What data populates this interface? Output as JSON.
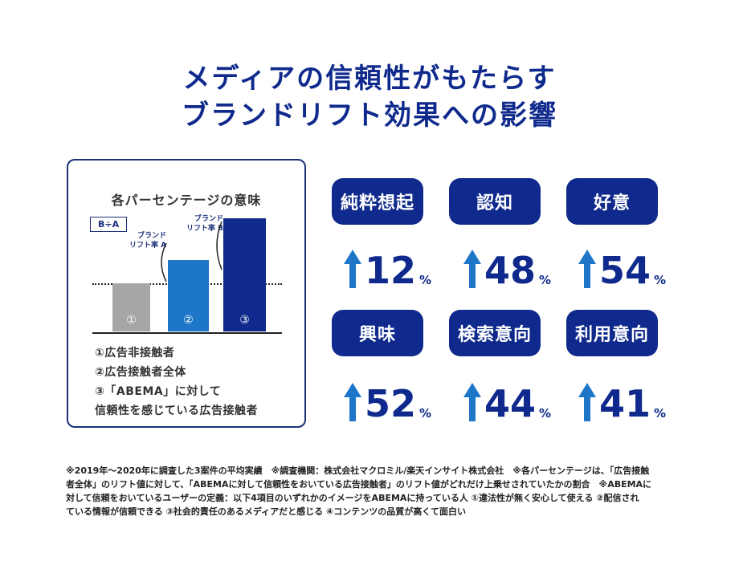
{
  "title": {
    "line1": "メディアの信頼性がもたらす",
    "line2": "ブランドリフト効果への影響"
  },
  "panel": {
    "title": "各パーセンテージの意味",
    "formula": "B÷A",
    "lift_a": [
      "ブランド",
      "リフト率 A"
    ],
    "lift_b": [
      "ブランド",
      "リフト率 B"
    ],
    "bars": [
      "①",
      "②",
      "③"
    ],
    "legend": [
      "①広告非接触者",
      "②広告接触者全体",
      "③「ABEMA」に対して",
      "信頼性を感じている広告接触者"
    ]
  },
  "metrics": [
    {
      "label": "純粋想起",
      "value": "12",
      "unit": "%"
    },
    {
      "label": "認知",
      "value": "48",
      "unit": "%"
    },
    {
      "label": "好意",
      "value": "54",
      "unit": "%"
    },
    {
      "label": "興味",
      "value": "52",
      "unit": "%"
    },
    {
      "label": "検索意向",
      "value": "44",
      "unit": "%"
    },
    {
      "label": "利用意向",
      "value": "41",
      "unit": "%"
    }
  ],
  "colors": {
    "navy": "#0f2a8c",
    "blue": "#1e76c9",
    "gray": "#a6a6a6",
    "arrow": "#1e76c9"
  },
  "footnote": [
    "※2019年〜2020年に調査した3案件の平均実績　※調査機関：株式会社マクロミル/楽天インサイト株式会社　※各パーセンテージは、「広告接触",
    "者全体」のリフト値に対して、「ABEMAに対して信頼性をおいている広告接触者」のリフト値がどれだけ上乗せされていたかの割合　※ABEMAに",
    "対して信頼をおいているユーザーの定義：以下4項目のいずれかのイメージをABEMAに持っている人 ①違法性が無く安心して使える ②配信され",
    "ている情報が信頼できる ③社会的責任のあるメディアだと感じる ④コンテンツの品質が高くて面白い"
  ]
}
